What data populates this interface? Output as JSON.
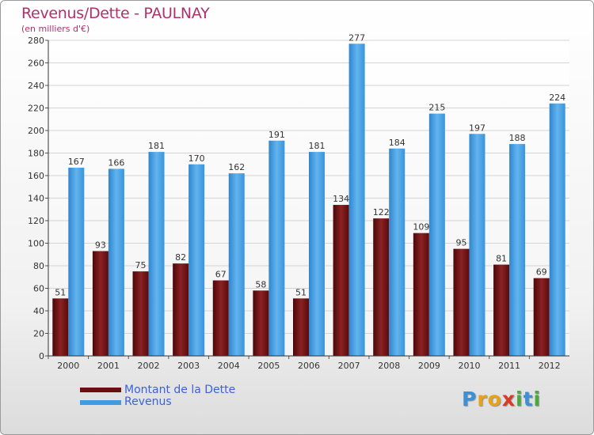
{
  "chart_data": {
    "type": "bar",
    "title": "Revenus/Dette - PAULNAY",
    "subtitle": "(en milliers d'€)",
    "categories": [
      "2000",
      "2001",
      "2002",
      "2003",
      "2004",
      "2005",
      "2006",
      "2007",
      "2008",
      "2009",
      "2010",
      "2011",
      "2012"
    ],
    "series": [
      {
        "name": "Montant de la Dette",
        "color": "#6b0f10",
        "values": [
          51,
          93,
          75,
          82,
          67,
          58,
          51,
          134,
          122,
          109,
          95,
          81,
          69
        ]
      },
      {
        "name": "Revenus",
        "color": "#3f9ce0",
        "values": [
          167,
          166,
          181,
          170,
          162,
          191,
          181,
          277,
          184,
          215,
          197,
          188,
          224
        ]
      }
    ],
    "ylim": [
      0,
      280
    ],
    "yticks": [
      0,
      20,
      40,
      60,
      80,
      100,
      120,
      140,
      160,
      180,
      200,
      220,
      240,
      260,
      280
    ],
    "grid": true,
    "legend_position": "bottom-left"
  },
  "logo": {
    "letters": [
      {
        "ch": "P",
        "color": "#3d8fd6"
      },
      {
        "ch": "r",
        "color": "#e8a21a"
      },
      {
        "ch": "o",
        "color": "#e8a21a"
      },
      {
        "ch": "x",
        "color": "#d83b2a"
      },
      {
        "ch": "i",
        "color": "#4aa83c"
      },
      {
        "ch": "t",
        "color": "#3d8fd6"
      },
      {
        "ch": "i",
        "color": "#4aa83c"
      }
    ]
  }
}
